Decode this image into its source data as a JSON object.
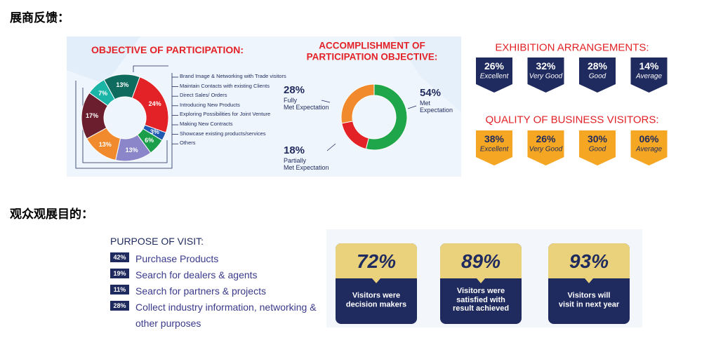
{
  "section1_heading": "展商反馈：",
  "objective": {
    "title": "OBJECTIVE OF PARTICIPATION:",
    "segments": [
      {
        "value": 7,
        "label": "7%",
        "color": "#1bb5a8"
      },
      {
        "value": 13,
        "label": "13%",
        "color": "#0f6b5e"
      },
      {
        "value": 24,
        "label": "24%",
        "color": "#e32227"
      },
      {
        "value": 3,
        "label": "3%",
        "color": "#1e5bb0"
      },
      {
        "value": 6,
        "label": "6%",
        "color": "#1a9e4a"
      },
      {
        "value": 13,
        "label": "13%",
        "color": "#8a86c9"
      },
      {
        "value": 13,
        "label": "13%",
        "color": "#f08a2c"
      },
      {
        "value": 17,
        "label": "17%",
        "color": "#6b1f2e"
      }
    ],
    "legend": [
      "Brand Image & Networking with Trade visitors",
      "Maintain Contacts with existing Clients",
      "Direct Sales/ Orders",
      "Introducing New Products",
      "Exploring Possibilities for Joint Venture",
      "Making New Contracts",
      "Showcase existing products/services",
      "Others"
    ]
  },
  "accomplishment": {
    "title": "ACCOMPLISHMENT OF\nPARTICIPATION OBJECTIVE:",
    "segments": [
      {
        "value": 54,
        "label": "54%",
        "text": "Met\nExpectation",
        "color": "#1fa64a"
      },
      {
        "value": 18,
        "label": "18%",
        "text": "Partially\nMet Expectation",
        "color": "#e32227"
      },
      {
        "value": 28,
        "label": "28%",
        "text": "Fully\nMet Expectation",
        "color": "#f08a2c"
      }
    ]
  },
  "arrangements": {
    "title": "EXHIBITION ARRANGEMENTS:",
    "color": "#1f2a5e",
    "text_color": "#ffffff",
    "items": [
      {
        "value": "26%",
        "label": "Excellent"
      },
      {
        "value": "32%",
        "label": "Very Good"
      },
      {
        "value": "28%",
        "label": "Good"
      },
      {
        "value": "14%",
        "label": "Average"
      }
    ]
  },
  "visitors_quality": {
    "title": "QUALITY OF BUSINESS VISITORS:",
    "color": "#f5a623",
    "text_color": "#1f2a5e",
    "items": [
      {
        "value": "38%",
        "label": "Excellent"
      },
      {
        "value": "26%",
        "label": "Very Good"
      },
      {
        "value": "30%",
        "label": "Good"
      },
      {
        "value": "06%",
        "label": "Average"
      }
    ]
  },
  "section2_heading": "观众观展目的：",
  "purpose": {
    "title": "PURPOSE OF VISIT:",
    "items": [
      {
        "share": "42%",
        "text": "Purchase Products"
      },
      {
        "share": "19%",
        "text": "Search for dealers & agents"
      },
      {
        "share": "11%",
        "text": "Search for partners & projects"
      },
      {
        "share": "28%",
        "text": "Collect industry information, networking & other purposes"
      }
    ]
  },
  "stats": [
    {
      "value": "72%",
      "text": "Visitors were\ndecision makers"
    },
    {
      "value": "89%",
      "text": "Visitors were\nsatisfied with\nresult achieved"
    },
    {
      "value": "93%",
      "text": "Visitors will\nvisit in next year"
    }
  ]
}
